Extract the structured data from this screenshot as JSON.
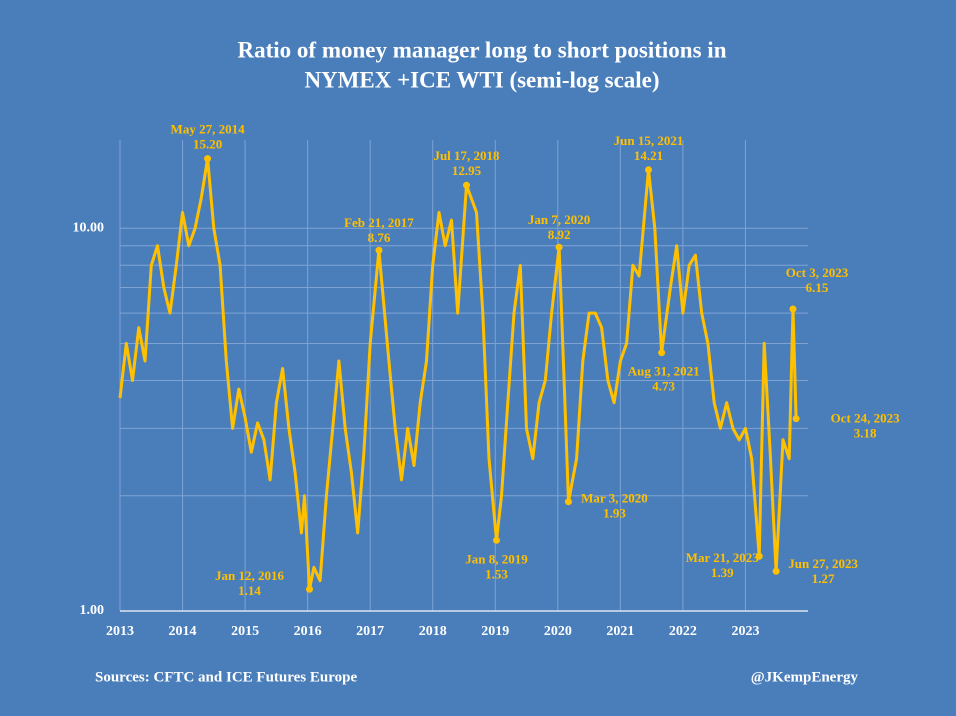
{
  "chart_data": {
    "type": "line",
    "title": [
      "Ratio of money manager long to short positions in",
      "NYMEX +ICE WTI (semi-log scale)"
    ],
    "source": "Sources: CFTC and ICE Futures Europe",
    "credit": "@JKempEnergy",
    "color": "#ffc000",
    "log_y": true,
    "grid": true,
    "xlim": [
      2013,
      2024
    ],
    "xticks": [
      2013,
      2014,
      2015,
      2016,
      2017,
      2018,
      2019,
      2020,
      2021,
      2022,
      2023
    ],
    "ylim": [
      1,
      17
    ],
    "yticks": [
      {
        "value": 1,
        "label": "1.00"
      },
      {
        "value": 10,
        "label": "10.00"
      }
    ],
    "minor_yticks": [
      2,
      3,
      4,
      5,
      6,
      7,
      8,
      9
    ],
    "x": [
      2013.0,
      2013.1,
      2013.2,
      2013.3,
      2013.4,
      2013.5,
      2013.6,
      2013.7,
      2013.8,
      2013.9,
      2014.0,
      2014.1,
      2014.2,
      2014.3,
      2014.4,
      2014.5,
      2014.6,
      2014.7,
      2014.8,
      2014.9,
      2015.0,
      2015.1,
      2015.2,
      2015.3,
      2015.4,
      2015.5,
      2015.6,
      2015.7,
      2015.8,
      2015.9,
      2015.95,
      2016.03,
      2016.1,
      2016.2,
      2016.3,
      2016.4,
      2016.5,
      2016.6,
      2016.7,
      2016.8,
      2016.9,
      2017.0,
      2017.14,
      2017.3,
      2017.4,
      2017.5,
      2017.6,
      2017.7,
      2017.8,
      2017.9,
      2018.0,
      2018.1,
      2018.2,
      2018.3,
      2018.4,
      2018.54,
      2018.7,
      2018.8,
      2018.9,
      2019.02,
      2019.1,
      2019.2,
      2019.3,
      2019.4,
      2019.5,
      2019.6,
      2019.7,
      2019.8,
      2019.9,
      2020.02,
      2020.1,
      2020.17,
      2020.3,
      2020.4,
      2020.5,
      2020.6,
      2020.7,
      2020.8,
      2020.9,
      2021.0,
      2021.1,
      2021.2,
      2021.3,
      2021.45,
      2021.55,
      2021.66,
      2021.8,
      2021.9,
      2022.0,
      2022.1,
      2022.2,
      2022.3,
      2022.4,
      2022.5,
      2022.6,
      2022.7,
      2022.8,
      2022.9,
      2023.0,
      2023.1,
      2023.22,
      2023.3,
      2023.4,
      2023.49,
      2023.6,
      2023.7,
      2023.76,
      2023.81
    ],
    "values": [
      3.6,
      5,
      4,
      5.5,
      4.5,
      8,
      9,
      7,
      6,
      8,
      11,
      9,
      10,
      12,
      15.2,
      10,
      8,
      4.5,
      3,
      3.8,
      3.2,
      2.6,
      3.1,
      2.8,
      2.2,
      3.5,
      4.3,
      3,
      2.3,
      1.6,
      2,
      1.14,
      1.3,
      1.2,
      2,
      3,
      4.5,
      3,
      2.3,
      1.6,
      2.6,
      5,
      8.76,
      4.5,
      3,
      2.2,
      3,
      2.4,
      3.5,
      4.5,
      8,
      11,
      9,
      10.5,
      6,
      12.95,
      11,
      6,
      2.5,
      1.53,
      2,
      3.5,
      6,
      8,
      3,
      2.5,
      3.5,
      4,
      6,
      8.92,
      4,
      1.93,
      2.5,
      4.5,
      6,
      6,
      5.5,
      4,
      3.5,
      4.5,
      5,
      8,
      7.5,
      14.21,
      10,
      4.73,
      7,
      9,
      6,
      8,
      8.5,
      6,
      5,
      3.5,
      3,
      3.5,
      3,
      2.8,
      3,
      2.5,
      1.39,
      5,
      2.5,
      1.27,
      2.8,
      2.5,
      6.15,
      3.18
    ],
    "annotations": [
      {
        "date": "May 27, 2014",
        "x": 2014.4,
        "value": 15.2,
        "label": "15.20"
      },
      {
        "date": "Jan 12, 2016",
        "x": 2016.03,
        "value": 1.14,
        "label": "1.14"
      },
      {
        "date": "Feb 21, 2017",
        "x": 2017.14,
        "value": 8.76,
        "label": "8.76"
      },
      {
        "date": "Jul 17, 2018",
        "x": 2018.54,
        "value": 12.95,
        "label": "12.95"
      },
      {
        "date": "Jan 8, 2019",
        "x": 2019.02,
        "value": 1.53,
        "label": "1.53"
      },
      {
        "date": "Jan 7, 2020",
        "x": 2020.02,
        "value": 8.92,
        "label": "8.92"
      },
      {
        "date": "Mar 3, 2020",
        "x": 2020.17,
        "value": 1.93,
        "label": "1.93"
      },
      {
        "date": "Jun 15, 2021",
        "x": 2021.45,
        "value": 14.21,
        "label": "14.21"
      },
      {
        "date": "Aug 31, 2021",
        "x": 2021.66,
        "value": 4.73,
        "label": "4.73"
      },
      {
        "date": "Mar 21, 2023",
        "x": 2023.22,
        "value": 1.39,
        "label": "1.39"
      },
      {
        "date": "Jun 27, 2023",
        "x": 2023.49,
        "value": 1.27,
        "label": "1.27"
      },
      {
        "date": "Oct 3, 2023",
        "x": 2023.76,
        "value": 6.15,
        "label": "6.15"
      },
      {
        "date": "Oct 24, 2023",
        "x": 2023.81,
        "value": 3.18,
        "label": "3.18"
      }
    ]
  }
}
